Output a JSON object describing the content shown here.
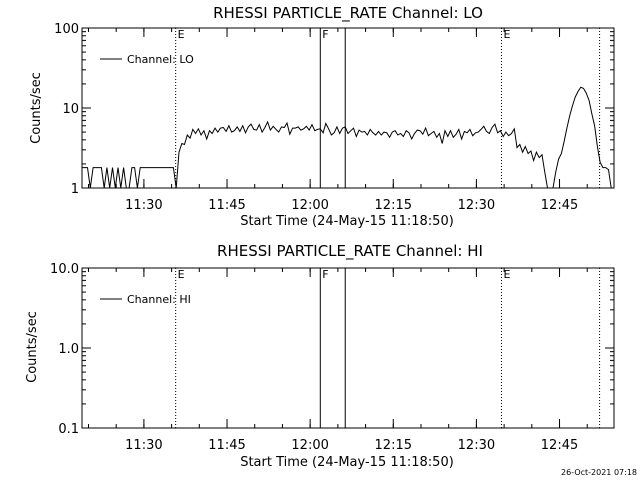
{
  "footer_timestamp": "26-Oct-2021 07:18",
  "chart_data": [
    {
      "type": "line",
      "title": "RHESSI PARTICLE_RATE Channel: LO",
      "xlabel": "Start Time (24-May-15 11:18:50)",
      "ylabel": "Counts/sec",
      "yscale": "log",
      "ylim": [
        1,
        100
      ],
      "yticks": [
        1,
        10,
        100
      ],
      "ytick_labels": [
        "1",
        "10",
        "100"
      ],
      "xlim_minutes_since_start": [
        0,
        96
      ],
      "xticks_minutes_since_start": [
        11.17,
        26.17,
        41.17,
        56.17,
        71.17,
        86.17
      ],
      "xtick_labels": [
        "11:30",
        "11:45",
        "12:00",
        "12:15",
        "12:30",
        "12:45"
      ],
      "legend": {
        "label": "Channel: LO",
        "placement": "top-left"
      },
      "markers": [
        {
          "t": 16.9,
          "style": "dotted",
          "label": "E"
        },
        {
          "t": 43.0,
          "style": "solid",
          "label": "F"
        },
        {
          "t": 47.5,
          "style": "solid",
          "label": ""
        },
        {
          "t": 75.7,
          "style": "dotted",
          "label": "E"
        },
        {
          "t": 93.4,
          "style": "dotted",
          "label": ""
        }
      ],
      "series": [
        {
          "name": "Channel: LO",
          "t_start_min": 0,
          "t_step_min": 0.5,
          "values": [
            1.8,
            1.8,
            1.8,
            1,
            1.8,
            1.8,
            1.8,
            1.8,
            1,
            1.8,
            1,
            1.8,
            1,
            1.8,
            1,
            1.8,
            1,
            1,
            1.8,
            1.8,
            1,
            1.8,
            1.8,
            1.8,
            1.8,
            1.8,
            1.8,
            1.8,
            1.8,
            1.8,
            1.8,
            1.8,
            1.8,
            1.8,
            1,
            2.8,
            3.6,
            3.5,
            4.6,
            4.2,
            5.4,
            4.8,
            5.5,
            4.6,
            5.2,
            4.1,
            5.2,
            4.8,
            5.6,
            5.0,
            5.6,
            5.7,
            5.1,
            6.0,
            5.0,
            5.2,
            5.8,
            5.1,
            6.0,
            4.9,
            5.8,
            6.3,
            5.4,
            5.3,
            6.2,
            5.0,
            5.7,
            6.7,
            5.3,
            5.9,
            5.4,
            5.0,
            5.8,
            5.7,
            6.5,
            4.7,
            5.6,
            5.6,
            5.8,
            5.3,
            5.5,
            5.9,
            5.3,
            6.2,
            5.2,
            5.4,
            5.5,
            4.9,
            6.4,
            5.5,
            4.6,
            4.9,
            5.8,
            4.8,
            5.6,
            5.8,
            4.8,
            5.2,
            5.6,
            4.4,
            5.3,
            5.0,
            5.1,
            4.6,
            5.4,
            4.9,
            4.6,
            5.1,
            4.6,
            5.0,
            4.9,
            4.3,
            5.0,
            5.2,
            4.6,
            4.8,
            4.4,
            5.2,
            4.9,
            4.1,
            4.8,
            5.3,
            5.2,
            4.7,
            5.6,
            4.5,
            4.8,
            5.1,
            4.3,
            4.8,
            3.6,
            5.2,
            4.4,
            5.2,
            4.3,
            4.7,
            5.4,
            4.1,
            5.1,
            4.9,
            5.4,
            4.5,
            4.9,
            5.0,
            5.4,
            5.9,
            5.1,
            4.8,
            5.7,
            6.3,
            4.9,
            5.2,
            4.4,
            5.0,
            4.5,
            4.8,
            5.5,
            3.2,
            3.5,
            2.8,
            3.3,
            2.7,
            2.9,
            2.2,
            2.8,
            2.4,
            2.6,
            1.6,
            1,
            1,
            1,
            1.6,
            2.3,
            2.7,
            3.8,
            5.6,
            8.0,
            10.6,
            13.7,
            16.1,
            18.2,
            17.6,
            15.3,
            12.4,
            8.5,
            6.0,
            3.3,
            2.1,
            1.8,
            1.8,
            1.7,
            1,
            1
          ],
          "color": "#000000"
        }
      ]
    },
    {
      "type": "line",
      "title": "RHESSI PARTICLE_RATE Channel: HI",
      "xlabel": "Start Time (24-May-15 11:18:50)",
      "ylabel": "Counts/sec",
      "yscale": "log",
      "ylim": [
        0.1,
        10
      ],
      "yticks": [
        0.1,
        1,
        10
      ],
      "ytick_labels": [
        "0.1",
        "1.0",
        "10.0"
      ],
      "xlim_minutes_since_start": [
        0,
        96
      ],
      "xticks_minutes_since_start": [
        11.17,
        26.17,
        41.17,
        56.17,
        71.17,
        86.17
      ],
      "xtick_labels": [
        "11:30",
        "11:45",
        "12:00",
        "12:15",
        "12:30",
        "12:45"
      ],
      "legend": {
        "label": "Channel: HI",
        "placement": "top-left"
      },
      "markers": [
        {
          "t": 16.9,
          "style": "dotted",
          "label": "E"
        },
        {
          "t": 43.0,
          "style": "solid",
          "label": "F"
        },
        {
          "t": 47.5,
          "style": "solid",
          "label": ""
        },
        {
          "t": 75.7,
          "style": "dotted",
          "label": "E"
        },
        {
          "t": 93.4,
          "style": "dotted",
          "label": ""
        }
      ],
      "series": []
    }
  ]
}
